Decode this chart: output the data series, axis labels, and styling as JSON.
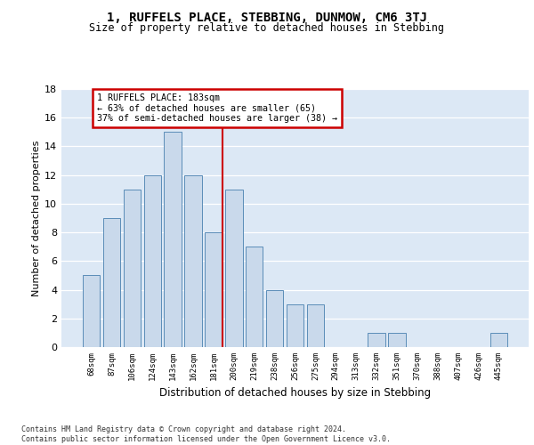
{
  "title": "1, RUFFELS PLACE, STEBBING, DUNMOW, CM6 3TJ",
  "subtitle": "Size of property relative to detached houses in Stebbing",
  "xlabel": "Distribution of detached houses by size in Stebbing",
  "ylabel": "Number of detached properties",
  "categories": [
    "68sqm",
    "87sqm",
    "106sqm",
    "124sqm",
    "143sqm",
    "162sqm",
    "181sqm",
    "200sqm",
    "219sqm",
    "238sqm",
    "256sqm",
    "275sqm",
    "294sqm",
    "313sqm",
    "332sqm",
    "351sqm",
    "370sqm",
    "388sqm",
    "407sqm",
    "426sqm",
    "445sqm"
  ],
  "values": [
    5,
    9,
    11,
    12,
    15,
    12,
    8,
    11,
    7,
    4,
    3,
    3,
    0,
    0,
    1,
    1,
    0,
    0,
    0,
    0,
    1
  ],
  "bar_color": "#c9d9eb",
  "bar_edge_color": "#5b8db8",
  "ylim": [
    0,
    18
  ],
  "yticks": [
    0,
    2,
    4,
    6,
    8,
    10,
    12,
    14,
    16,
    18
  ],
  "property_bin_index": 6,
  "annotation_title": "1 RUFFELS PLACE: 183sqm",
  "annotation_line1": "← 63% of detached houses are smaller (65)",
  "annotation_line2": "37% of semi-detached houses are larger (38) →",
  "annotation_box_color": "#ffffff",
  "annotation_box_edge": "#cc0000",
  "red_line_color": "#cc0000",
  "background_color": "#dce8f5",
  "footer1": "Contains HM Land Registry data © Crown copyright and database right 2024.",
  "footer2": "Contains public sector information licensed under the Open Government Licence v3.0."
}
